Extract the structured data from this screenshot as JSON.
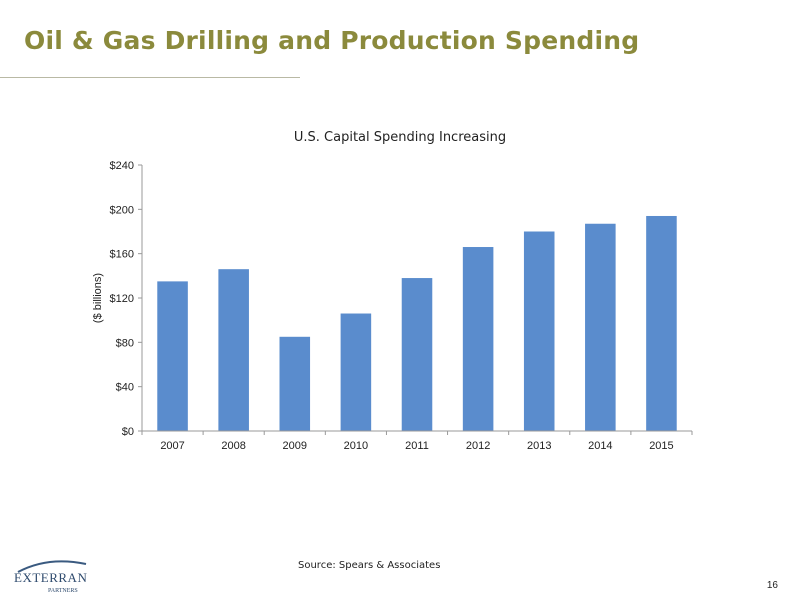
{
  "slide": {
    "title": "Oil & Gas Drilling and Production Spending",
    "source": "Source: Spears & Associates",
    "page_number": "16"
  },
  "logo": {
    "text": "EXTERRAN",
    "subtext": "PARTNERS",
    "color": "#2f4b6e",
    "swoosh_color": "#3a5a80"
  },
  "colors": {
    "title": "#8b8a3c",
    "bar": "#5a8ccd",
    "axis": "#999999"
  },
  "chart_data": {
    "type": "bar",
    "title": "U.S. Capital Spending Increasing",
    "xlabel": "",
    "ylabel": "($ billions)",
    "categories": [
      "2007",
      "2008",
      "2009",
      "2010",
      "2011",
      "2012",
      "2013",
      "2014",
      "2015"
    ],
    "values": [
      135,
      146,
      85,
      106,
      138,
      166,
      180,
      187,
      194
    ],
    "ylim": [
      0,
      240
    ],
    "yticks": [
      0,
      40,
      80,
      120,
      160,
      200,
      240
    ],
    "ytick_labels": [
      "$0",
      "$40",
      "$80",
      "$120",
      "$160",
      "$200",
      "$240"
    ],
    "grid": false,
    "legend": "none"
  }
}
